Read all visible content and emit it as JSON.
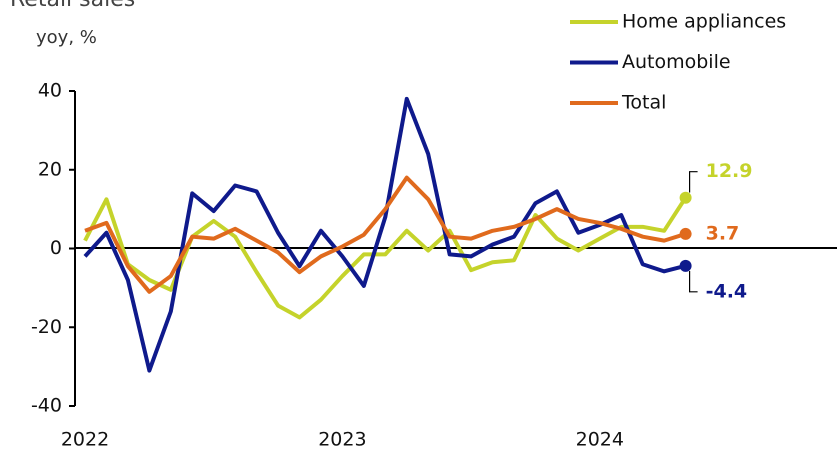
{
  "chart_data": {
    "type": "line",
    "title": "Retail sales",
    "subtitle": "yoy, %",
    "categories": [
      "2022",
      null,
      null,
      null,
      null,
      null,
      null,
      null,
      null,
      null,
      null,
      null,
      "2023",
      null,
      null,
      null,
      null,
      null,
      null,
      null,
      null,
      null,
      null,
      null,
      "2024",
      null,
      null,
      null,
      null
    ],
    "series": [
      {
        "name": "Home appliances",
        "color": "#c5d32b",
        "values": [
          2,
          12.5,
          -4,
          -8,
          -10.5,
          3,
          7,
          3,
          -6,
          -14.5,
          -17.5,
          -13,
          -7,
          -1.5,
          -1.5,
          4.5,
          -0.5,
          4.5,
          -5.5,
          -3.5,
          -3,
          8.5,
          2.5,
          -0.5,
          2.5,
          5.5,
          5.5,
          4.5,
          12.9
        ]
      },
      {
        "name": "Automobile",
        "color": "#0f1a8c",
        "values": [
          -2,
          4,
          -8,
          -31,
          -16,
          14,
          9.5,
          16,
          14.5,
          4,
          -4.5,
          4.5,
          -2,
          -9.5,
          8,
          38,
          24,
          -1.5,
          -2,
          1,
          3,
          11.5,
          14.5,
          4,
          6,
          8.5,
          -4,
          -5.8,
          -4.4
        ]
      },
      {
        "name": "Total",
        "color": "#e06a1d",
        "values": [
          4.5,
          6.5,
          -4.5,
          -11,
          -7,
          3,
          2.5,
          5,
          2,
          -1,
          -6,
          -2,
          0.5,
          3.5,
          10,
          18,
          12.5,
          3,
          2.5,
          4.5,
          5.5,
          7.5,
          10,
          7.5,
          6.5,
          5,
          3,
          2,
          3.7
        ]
      }
    ],
    "ylim": [
      -40,
      40
    ],
    "yticks": [
      -40,
      -20,
      0,
      20,
      40
    ]
  }
}
